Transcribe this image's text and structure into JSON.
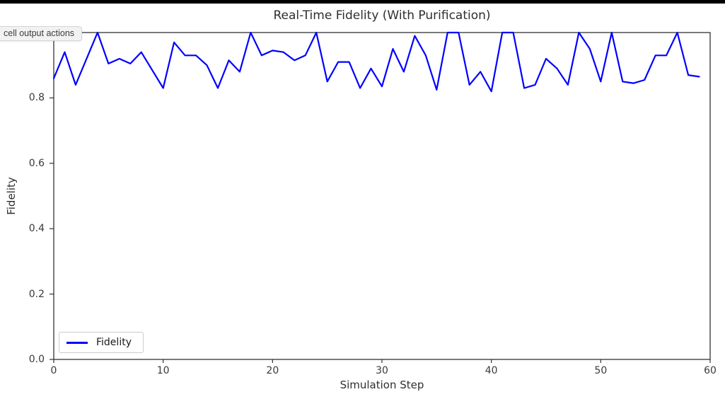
{
  "ui": {
    "top_bar_color": "#000000",
    "tooltip": {
      "text": "cell output actions"
    }
  },
  "chart_data": {
    "type": "line",
    "title": "Real-Time Fidelity (With Purification)",
    "xlabel": "Simulation Step",
    "ylabel": "Fidelity",
    "xlim": [
      0,
      60
    ],
    "ylim": [
      0.0,
      1.0
    ],
    "x_ticks": [
      0,
      10,
      20,
      30,
      40,
      50,
      60
    ],
    "y_ticks": [
      "0.0",
      "0.2",
      "0.4",
      "0.6",
      "0.8",
      "1.0"
    ],
    "grid": false,
    "background": "#ffffff",
    "spine_color": "#333333",
    "legend": {
      "position": "lower left",
      "entries": [
        {
          "label": "Fidelity",
          "color": "#0000ff"
        }
      ]
    },
    "series": [
      {
        "name": "Fidelity",
        "color": "#0000ff",
        "x0": 0,
        "dx": 1,
        "values": [
          0.86,
          0.94,
          0.84,
          0.92,
          1.0,
          0.905,
          0.92,
          0.905,
          0.94,
          0.885,
          0.83,
          0.97,
          0.93,
          0.93,
          0.9,
          0.83,
          0.915,
          0.88,
          1.0,
          0.93,
          0.945,
          0.94,
          0.915,
          0.93,
          1.0,
          0.85,
          0.91,
          0.91,
          0.83,
          0.89,
          0.835,
          0.95,
          0.88,
          0.99,
          0.93,
          0.825,
          1.0,
          1.0,
          0.84,
          0.88,
          0.82,
          1.0,
          1.0,
          0.83,
          0.84,
          0.92,
          0.89,
          0.84,
          1.0,
          0.95,
          0.85,
          1.0,
          0.85,
          0.845,
          0.855,
          0.93,
          0.93,
          1.0,
          0.87,
          0.865
        ]
      }
    ]
  }
}
